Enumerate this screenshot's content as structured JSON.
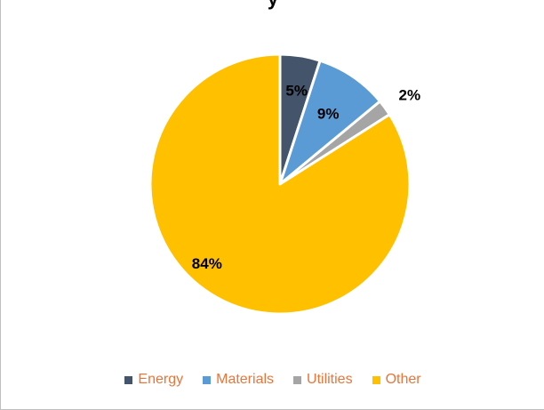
{
  "chart_data": {
    "type": "pie",
    "title": "y",
    "categories": [
      "Energy",
      "Materials",
      "Utilities",
      "Other"
    ],
    "values": [
      5,
      9,
      2,
      84
    ],
    "data_labels": [
      "5%",
      "9%",
      "2%",
      "84%"
    ],
    "colors": [
      "#44546a",
      "#5b9bd5",
      "#a5a5a5",
      "#ffc000"
    ],
    "start_angle_deg": 0,
    "direction": "clockwise",
    "legend_position": "bottom",
    "legend_text_color": "#e8753a"
  }
}
